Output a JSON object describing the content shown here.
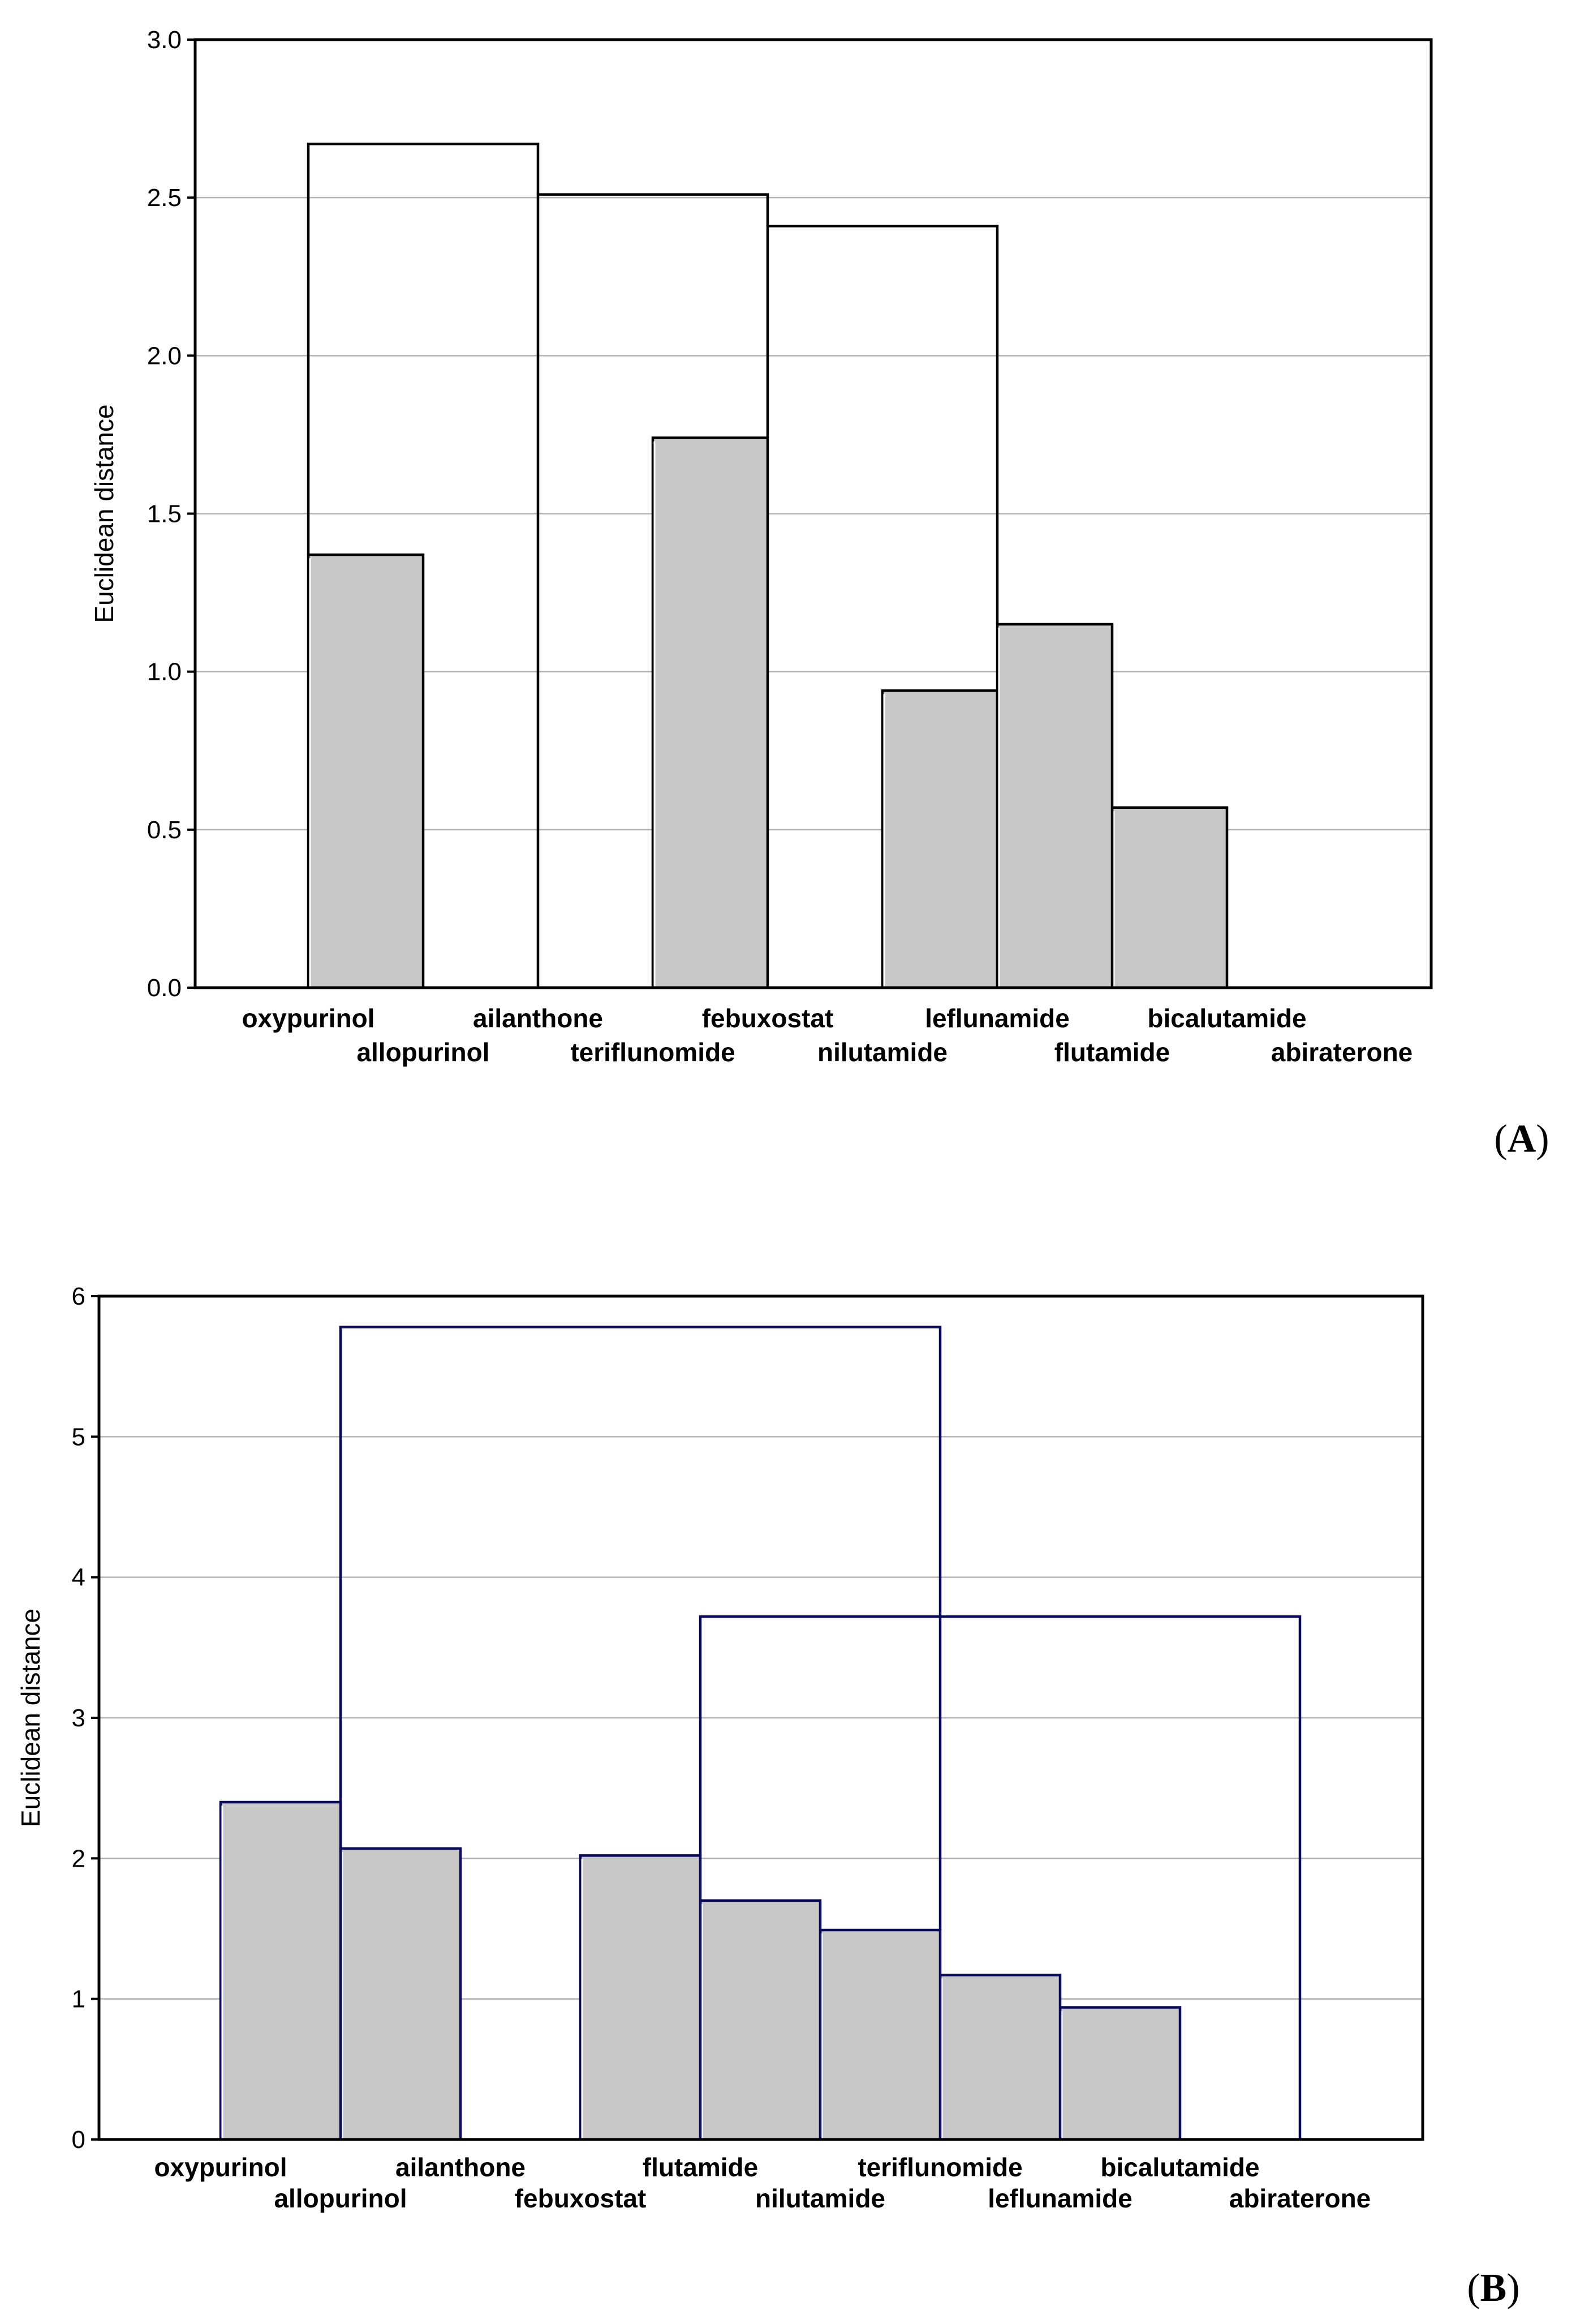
{
  "colors": {
    "fill": "#c8c8c8",
    "gridline": "#b4b4b4",
    "axis": "#000000",
    "linkA": "#000000",
    "linkB": "#0a0a5a"
  },
  "chart_data": [
    {
      "type": "dendrogram",
      "panel": "A",
      "panel_label": {
        "open": "(",
        "letter": "A",
        "close": ")"
      },
      "title": "",
      "xlabel": "",
      "ylabel": "Euclidean distance",
      "ylim": [
        0,
        3.0
      ],
      "yticks": [
        "0.0",
        "0.5",
        "1.0",
        "1.5",
        "2.0",
        "2.5",
        "3.0"
      ],
      "grid": true,
      "leaves": [
        "oxypurinol",
        "allopurinol",
        "ailanthone",
        "teriflunomide",
        "febuxostat",
        "nilutamide",
        "leflunamide",
        "flutamide",
        "bicalutamide",
        "abiraterone"
      ],
      "merges": [
        {
          "left": 0,
          "right": 1,
          "height": 1.37
        },
        {
          "left": 3,
          "right": 4,
          "height": 1.74
        },
        {
          "left": 7,
          "right": 8,
          "height": 0.57
        },
        {
          "left": 5,
          "right": 6,
          "height": 0.94
        },
        {
          "left": 6,
          "right": 7,
          "height": 1.15
        },
        {
          "left": 4,
          "right": 6,
          "height": 2.41
        },
        {
          "left": 2,
          "right": 4,
          "height": 2.51
        },
        {
          "left": 0,
          "right": 2,
          "height": 2.67
        }
      ]
    },
    {
      "type": "dendrogram",
      "panel": "B",
      "panel_label": {
        "open": "(",
        "letter": "B",
        "close": ")"
      },
      "title": "",
      "xlabel": "",
      "ylabel": "Euclidean distance",
      "ylim": [
        0,
        6
      ],
      "yticks": [
        "0",
        "1",
        "2",
        "3",
        "4",
        "5",
        "6"
      ],
      "grid": true,
      "leaves": [
        "oxypurinol",
        "allopurinol",
        "ailanthone",
        "febuxostat",
        "flutamide",
        "nilutamide",
        "teriflunomide",
        "leflunamide",
        "bicalutamide",
        "abiraterone"
      ],
      "merges": [
        {
          "left": 1,
          "right": 2,
          "height": 2.07
        },
        {
          "left": 0,
          "right": 1,
          "height": 2.4
        },
        {
          "left": 7,
          "right": 8,
          "height": 0.94
        },
        {
          "left": 6,
          "right": 7,
          "height": 1.17
        },
        {
          "left": 5,
          "right": 6,
          "height": 1.49
        },
        {
          "left": 4,
          "right": 5,
          "height": 1.7
        },
        {
          "left": 3,
          "right": 4,
          "height": 2.02
        },
        {
          "left": 4,
          "right": 9,
          "height": 3.72
        },
        {
          "left": 1,
          "right": 6,
          "height": 5.78
        }
      ]
    }
  ]
}
